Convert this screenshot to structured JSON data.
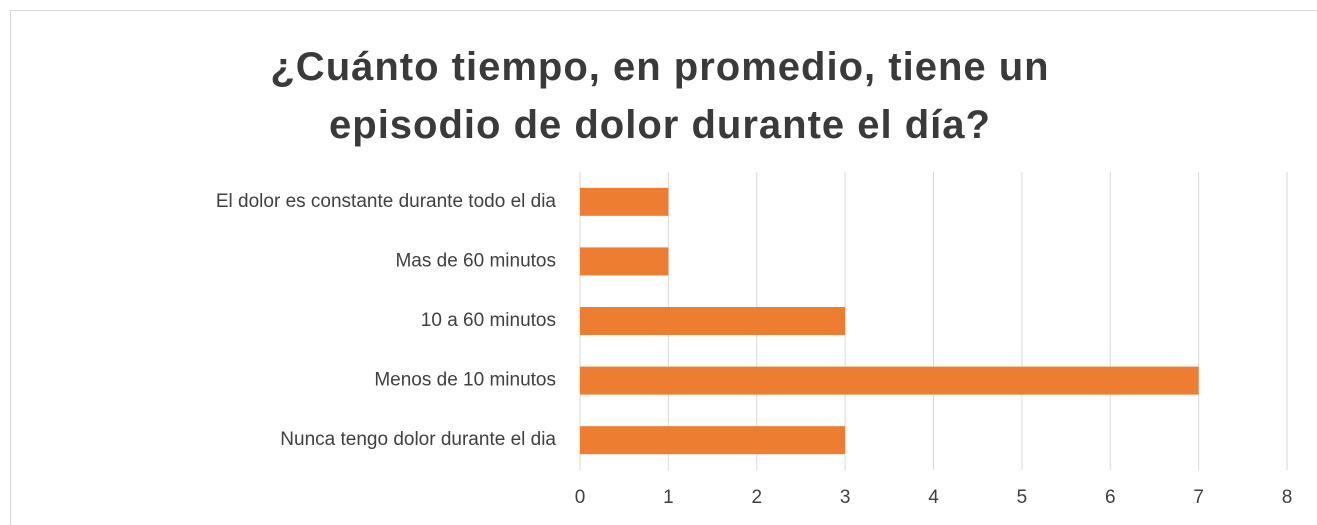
{
  "chart_data": {
    "type": "barh",
    "title": "¿Cuánto tiempo, en promedio, tiene un episodio de dolor durante el día?",
    "categories": [
      "El dolor es constante durante todo el dia",
      "Mas de 60 minutos",
      "10 a 60 minutos",
      "Menos de 10 minutos",
      "Nunca tengo dolor durante el dia"
    ],
    "values": [
      1,
      1,
      3,
      7,
      3
    ],
    "color": "#ed7d31",
    "xlim": [
      0,
      8
    ],
    "xticks": [
      0,
      1,
      2,
      3,
      4,
      5,
      6,
      7,
      8
    ],
    "grid": true
  }
}
